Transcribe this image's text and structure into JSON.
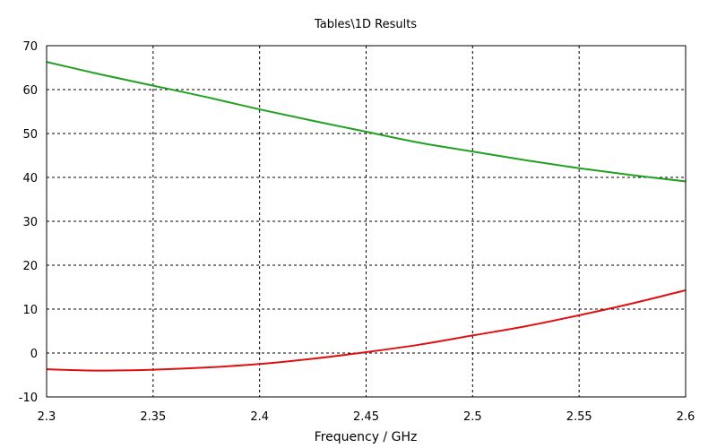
{
  "chart_data": {
    "type": "line",
    "title": "Tables\\1D Results",
    "xlabel": "Frequency / GHz",
    "ylabel": "",
    "xlim": [
      2.3,
      2.6
    ],
    "ylim": [
      -10,
      70
    ],
    "xticks": [
      "2.3",
      "2.35",
      "2.4",
      "2.45",
      "2.5",
      "2.55",
      "2.6"
    ],
    "yticks": [
      "-10",
      "0",
      "10",
      "20",
      "30",
      "40",
      "50",
      "60",
      "70"
    ],
    "grid": true,
    "legend": "none",
    "series": [
      {
        "color": "#22a022",
        "x": [
          2.3,
          2.325,
          2.35,
          2.375,
          2.4,
          2.425,
          2.45,
          2.475,
          2.5,
          2.525,
          2.55,
          2.575,
          2.6
        ],
        "y": [
          66.3,
          63.5,
          60.9,
          58.3,
          55.5,
          52.9,
          50.4,
          47.9,
          45.9,
          43.9,
          42.1,
          40.5,
          39.1
        ]
      },
      {
        "color": "#dd1111",
        "x": [
          2.3,
          2.325,
          2.35,
          2.375,
          2.4,
          2.425,
          2.45,
          2.475,
          2.5,
          2.525,
          2.55,
          2.575,
          2.6
        ],
        "y": [
          -3.7,
          -4.0,
          -3.8,
          -3.3,
          -2.5,
          -1.3,
          0.2,
          1.9,
          4.0,
          6.1,
          8.6,
          11.3,
          14.3
        ]
      }
    ]
  }
}
